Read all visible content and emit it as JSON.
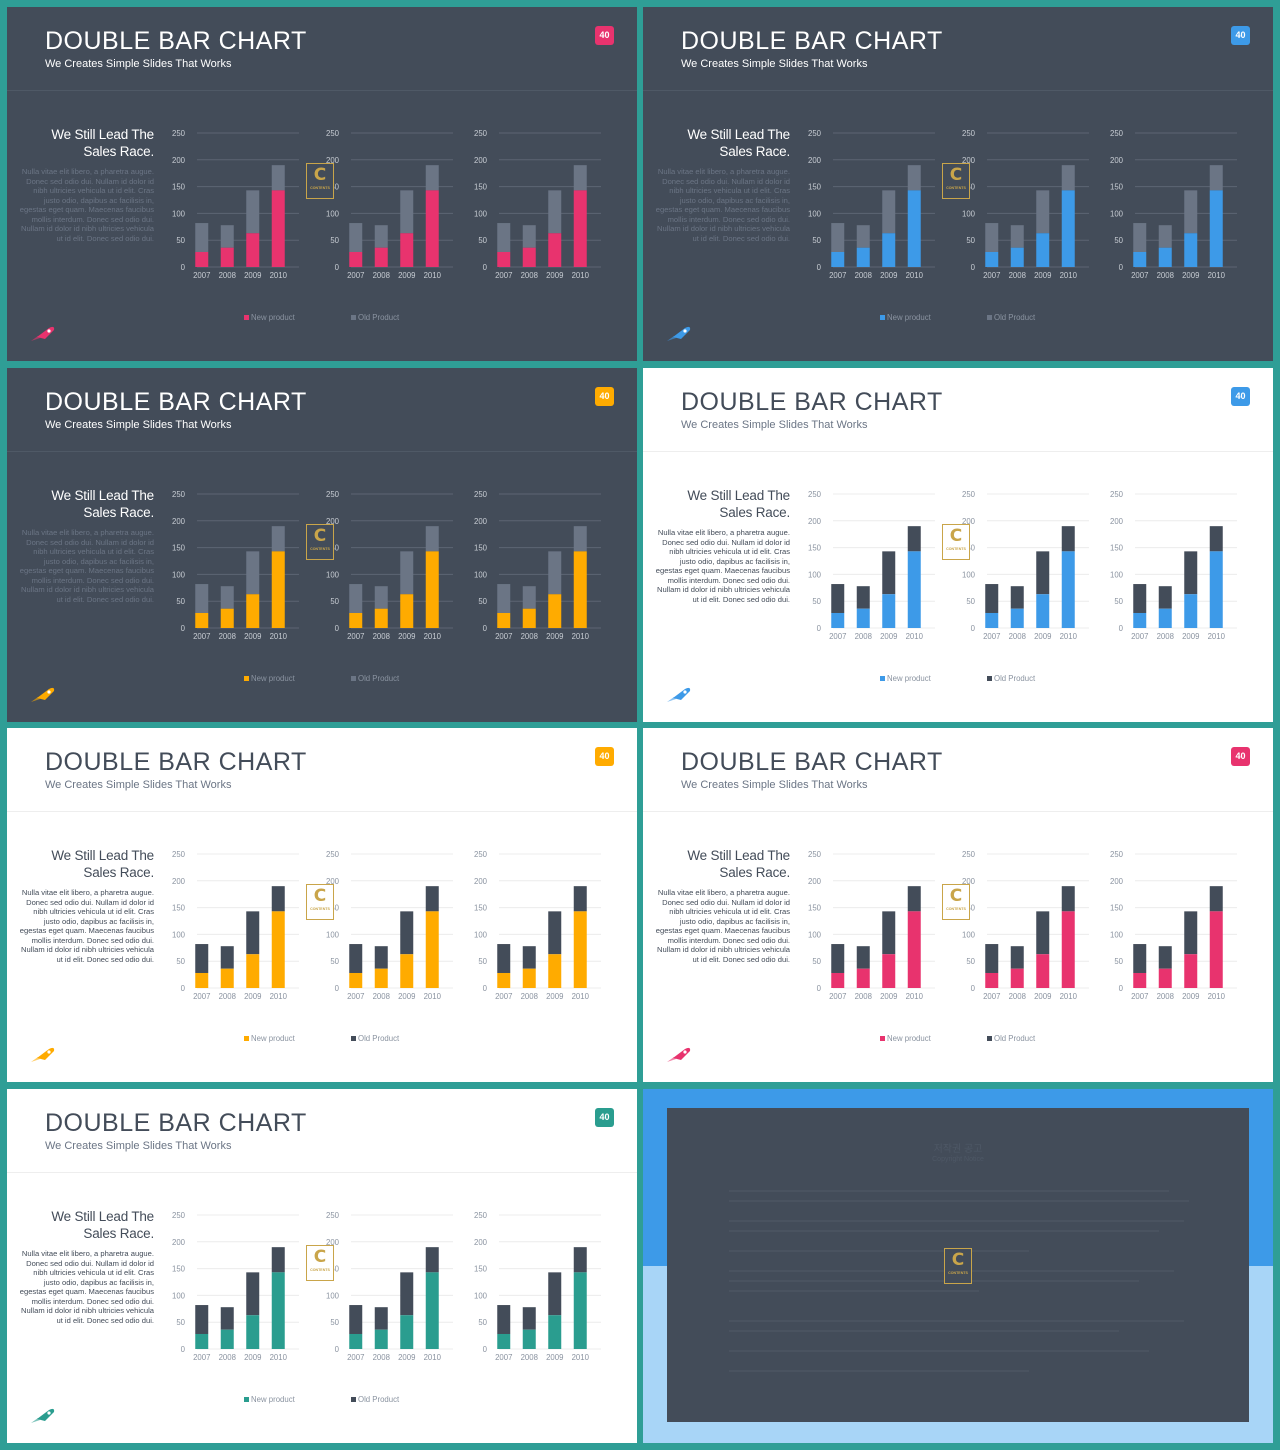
{
  "slide_title": "DOUBLE BAR CHART",
  "slide_subtitle": "We Creates Simple Slides That Works",
  "badge_number": "40",
  "lead_text": "We Still Lead The Sales Race.",
  "body_text": "Nulla vitae elit libero, a pharetra augue. Donec sed odio dui. Nullam id dolor id nibh ultricies vehicula ut id elit. Cras justo odio, dapibus ac facilisis in, egestas eget quam. Maecenas faucibus mollis interdum. Donec sed odio dui. Nullam id dolor id nibh ultricies vehicula ut id elit. Donec sed odio dui.",
  "logo_letter": "C",
  "logo_text": "CONTENTS",
  "notice": {
    "title": "저작권 공고",
    "subtitle": "Copyright Notice"
  },
  "themes": [
    {
      "name": "pink-dark",
      "background": "dark",
      "accent": "#e8336e"
    },
    {
      "name": "blue-dark",
      "background": "dark",
      "accent": "#3d9ae8"
    },
    {
      "name": "orange-dark",
      "background": "dark",
      "accent": "#ffab00"
    },
    {
      "name": "blue-light",
      "background": "light",
      "accent": "#3d9ae8"
    },
    {
      "name": "orange-light",
      "background": "light",
      "accent": "#ffab00"
    },
    {
      "name": "pink-light",
      "background": "light",
      "accent": "#e8336e"
    },
    {
      "name": "teal-light",
      "background": "light",
      "accent": "#2a9d8f"
    }
  ],
  "colors": {
    "frame": "#2f9e96",
    "dark_bg": "#434c59",
    "old_product_on_dark": "#6b7585",
    "old_product_on_light": "#434c59"
  },
  "chart_data": {
    "type": "bar",
    "stacked": true,
    "categories": [
      "2007",
      "2008",
      "2009",
      "2010"
    ],
    "series": [
      {
        "name": "New product",
        "values": [
          28,
          36,
          63,
          143
        ]
      },
      {
        "name": "Old Product",
        "values": [
          54,
          42,
          80,
          47
        ]
      }
    ],
    "y_ticks": [
      "0",
      "50",
      "100",
      "150",
      "200",
      "250"
    ],
    "ylim": [
      0,
      250
    ],
    "legend": [
      "New product",
      "Old Product"
    ],
    "charts_per_slide": 3
  }
}
